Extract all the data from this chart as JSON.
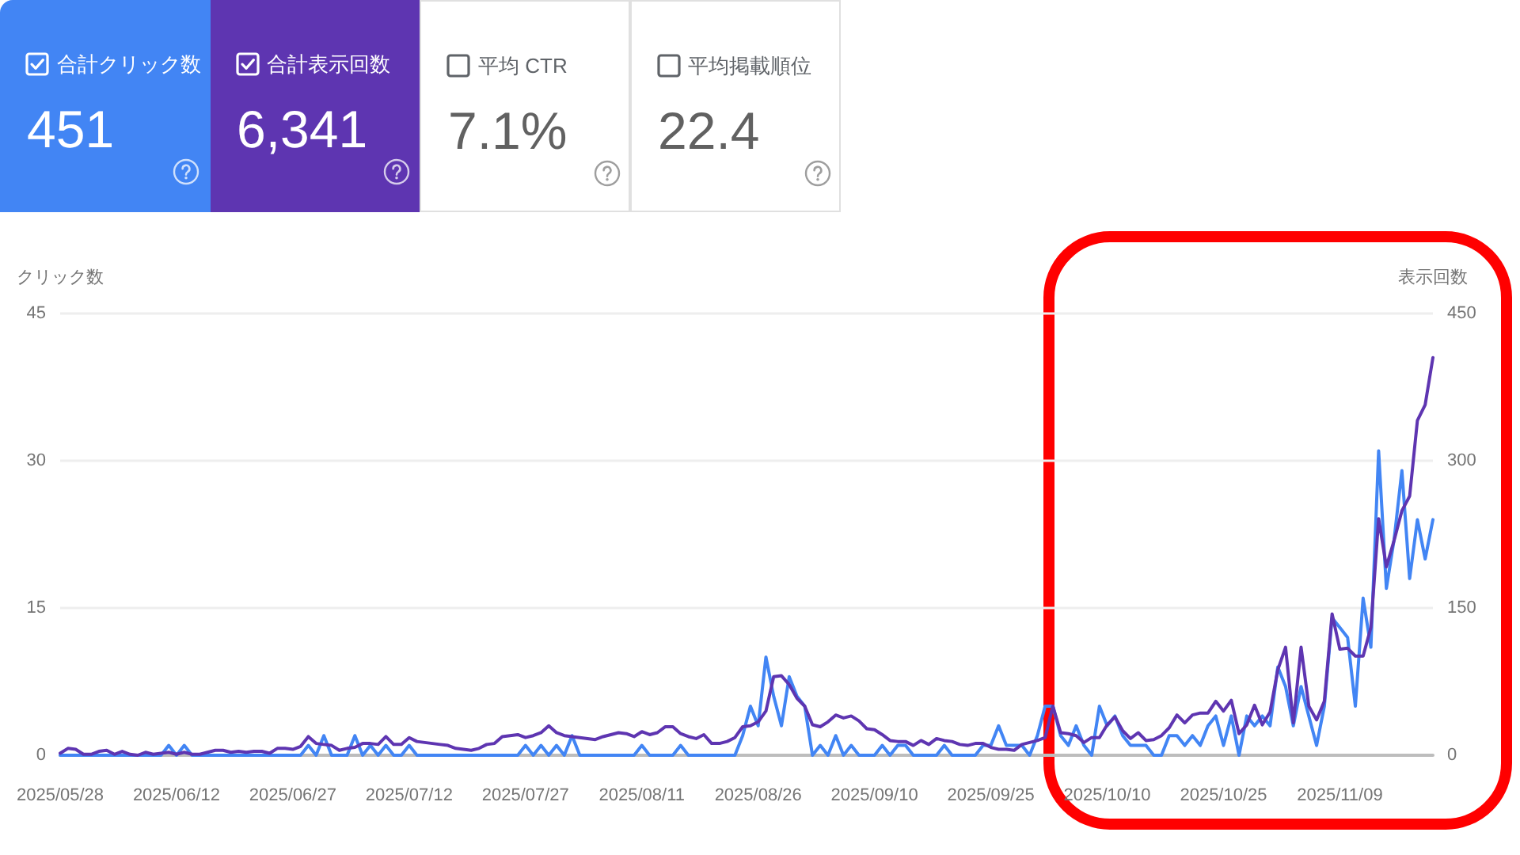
{
  "chart_data": [
    {
      "type": "other",
      "categories": [
        "合計クリック数",
        "合計表示回数",
        "平均 CTR",
        "平均掲載順位"
      ],
      "value_labels": [
        "451",
        "6,341",
        "7.1%",
        "22.4"
      ],
      "colors": [
        "#4285f4",
        "#5e35b1",
        "#ffffff",
        "#ffffff"
      ]
    },
    {
      "type": "line",
      "ylabel": "クリック数",
      "y2label": "表示回数",
      "x": [
        "2025-05-28",
        "2025-05-29",
        "2025-05-30",
        "2025-05-31",
        "2025-06-01",
        "2025-06-02",
        "2025-06-03",
        "2025-06-04",
        "2025-06-05",
        "2025-06-06",
        "2025-06-07",
        "2025-06-08",
        "2025-06-09",
        "2025-06-10",
        "2025-06-11",
        "2025-06-12",
        "2025-06-13",
        "2025-06-14",
        "2025-06-15",
        "2025-06-16",
        "2025-06-17",
        "2025-06-18",
        "2025-06-19",
        "2025-06-20",
        "2025-06-21",
        "2025-06-22",
        "2025-06-23",
        "2025-06-24",
        "2025-06-25",
        "2025-06-26",
        "2025-06-27",
        "2025-06-28",
        "2025-06-29",
        "2025-06-30",
        "2025-07-01",
        "2025-07-02",
        "2025-07-03",
        "2025-07-04",
        "2025-07-05",
        "2025-07-06",
        "2025-07-07",
        "2025-07-08",
        "2025-07-09",
        "2025-07-10",
        "2025-07-11",
        "2025-07-12",
        "2025-07-13",
        "2025-07-14",
        "2025-07-15",
        "2025-07-16",
        "2025-07-17",
        "2025-07-18",
        "2025-07-19",
        "2025-07-20",
        "2025-07-21",
        "2025-07-22",
        "2025-07-23",
        "2025-07-24",
        "2025-07-25",
        "2025-07-26",
        "2025-07-27",
        "2025-07-28",
        "2025-07-29",
        "2025-07-30",
        "2025-07-31",
        "2025-08-01",
        "2025-08-02",
        "2025-08-03",
        "2025-08-04",
        "2025-08-05",
        "2025-08-06",
        "2025-08-07",
        "2025-08-08",
        "2025-08-09",
        "2025-08-10",
        "2025-08-11",
        "2025-08-12",
        "2025-08-13",
        "2025-08-14",
        "2025-08-15",
        "2025-08-16",
        "2025-08-17",
        "2025-08-18",
        "2025-08-19",
        "2025-08-20",
        "2025-08-21",
        "2025-08-22",
        "2025-08-23",
        "2025-08-24",
        "2025-08-25",
        "2025-08-26",
        "2025-08-27",
        "2025-08-28",
        "2025-08-29",
        "2025-08-30",
        "2025-08-31",
        "2025-09-01",
        "2025-09-02",
        "2025-09-03",
        "2025-09-04",
        "2025-09-05",
        "2025-09-06",
        "2025-09-07",
        "2025-09-08",
        "2025-09-09",
        "2025-09-10",
        "2025-09-11",
        "2025-09-12",
        "2025-09-13",
        "2025-09-14",
        "2025-09-15",
        "2025-09-16",
        "2025-09-17",
        "2025-09-18",
        "2025-09-19",
        "2025-09-20",
        "2025-09-21",
        "2025-09-22",
        "2025-09-23",
        "2025-09-24",
        "2025-09-25",
        "2025-09-26",
        "2025-09-27",
        "2025-09-28",
        "2025-09-29",
        "2025-09-30",
        "2025-10-01",
        "2025-10-02",
        "2025-10-03",
        "2025-10-04",
        "2025-10-05",
        "2025-10-06",
        "2025-10-07",
        "2025-10-08",
        "2025-10-09",
        "2025-10-10",
        "2025-10-11",
        "2025-10-12",
        "2025-10-13",
        "2025-10-14",
        "2025-10-15",
        "2025-10-16",
        "2025-10-17",
        "2025-10-18",
        "2025-10-19",
        "2025-10-20",
        "2025-10-21",
        "2025-10-22",
        "2025-10-23",
        "2025-10-24",
        "2025-10-25",
        "2025-10-26",
        "2025-10-27",
        "2025-10-28",
        "2025-10-29",
        "2025-10-30",
        "2025-10-31",
        "2025-11-01",
        "2025-11-02",
        "2025-11-03",
        "2025-11-04",
        "2025-11-05",
        "2025-11-06",
        "2025-11-07",
        "2025-11-08",
        "2025-11-09",
        "2025-11-10",
        "2025-11-11",
        "2025-11-12",
        "2025-11-13",
        "2025-11-14",
        "2025-11-15",
        "2025-11-16",
        "2025-11-17",
        "2025-11-18",
        "2025-11-19",
        "2025-11-20",
        "2025-11-21"
      ],
      "series": [
        {
          "color": "#4285f4",
          "values": [
            0,
            0,
            0,
            0,
            0,
            0,
            0,
            0,
            0,
            0,
            0,
            0,
            0,
            0,
            1,
            0,
            1,
            0,
            0,
            0,
            0,
            0,
            0,
            0,
            0,
            0,
            0,
            0,
            0,
            0,
            0,
            0,
            1,
            0,
            2,
            0,
            0,
            0,
            2,
            0,
            1,
            0,
            1,
            0,
            0,
            1,
            0,
            0,
            0,
            0,
            0,
            0,
            0,
            0,
            0,
            0,
            0,
            0,
            0,
            0,
            1,
            0,
            1,
            0,
            1,
            0,
            2,
            0,
            0,
            0,
            0,
            0,
            0,
            0,
            0,
            1,
            0,
            0,
            0,
            0,
            1,
            0,
            0,
            0,
            0,
            0,
            0,
            0,
            2,
            5,
            3,
            10,
            6,
            3,
            8,
            6,
            5,
            0,
            1,
            0,
            2,
            0,
            1,
            0,
            0,
            0,
            1,
            0,
            1,
            1,
            0,
            0,
            0,
            0,
            1,
            0,
            0,
            0,
            0,
            1,
            1,
            3,
            1,
            1,
            1,
            0,
            2,
            5,
            5,
            2,
            1,
            3,
            1,
            0,
            5,
            3,
            4,
            2,
            1,
            1,
            1,
            0,
            0,
            2,
            2,
            1,
            2,
            1,
            3,
            4,
            1,
            4,
            0,
            4,
            3,
            4,
            3,
            9,
            7,
            3,
            7,
            4,
            1,
            5,
            14,
            13,
            12,
            5,
            16,
            11,
            31,
            17,
            22,
            29,
            18,
            24,
            20,
            24
          ]
        },
        {
          "color": "#5e35b1",
          "axis": "y2",
          "values": [
            2,
            7,
            6,
            1,
            1,
            4,
            5,
            1,
            4,
            1,
            0,
            3,
            1,
            2,
            3,
            1,
            3,
            1,
            1,
            3,
            5,
            5,
            3,
            4,
            3,
            4,
            4,
            2,
            7,
            7,
            6,
            9,
            19,
            12,
            11,
            10,
            5,
            7,
            8,
            12,
            12,
            11,
            19,
            11,
            11,
            18,
            14,
            13,
            12,
            11,
            10,
            7,
            6,
            5,
            7,
            11,
            12,
            19,
            20,
            21,
            18,
            20,
            23,
            30,
            23,
            20,
            19,
            18,
            17,
            16,
            19,
            21,
            23,
            22,
            19,
            24,
            21,
            23,
            29,
            29,
            22,
            19,
            17,
            21,
            12,
            12,
            14,
            18,
            29,
            30,
            34,
            45,
            80,
            81,
            72,
            58,
            50,
            31,
            29,
            34,
            41,
            38,
            40,
            35,
            27,
            26,
            21,
            15,
            14,
            14,
            10,
            15,
            11,
            17,
            15,
            14,
            11,
            10,
            12,
            12,
            8,
            6,
            6,
            5,
            11,
            13,
            15,
            18,
            50,
            23,
            22,
            20,
            13,
            18,
            18,
            31,
            39,
            25,
            17,
            23,
            15,
            16,
            20,
            28,
            41,
            33,
            41,
            43,
            43,
            55,
            45,
            56,
            22,
            31,
            51,
            31,
            44,
            87,
            110,
            33,
            110,
            50,
            36,
            55,
            144,
            108,
            109,
            101,
            101,
            130,
            241,
            192,
            219,
            249,
            264,
            341,
            357,
            405
          ]
        }
      ],
      "xlim": [
        "2025-05-28",
        "2025-11-21"
      ],
      "xticks": [
        {
          "value": "2025-05-28",
          "label": "2025/05/28"
        },
        {
          "value": "2025-06-12",
          "label": "2025/06/12"
        },
        {
          "value": "2025-06-27",
          "label": "2025/06/27"
        },
        {
          "value": "2025-07-12",
          "label": "2025/07/12"
        },
        {
          "value": "2025-07-27",
          "label": "2025/07/27"
        },
        {
          "value": "2025-08-11",
          "label": "2025/08/11"
        },
        {
          "value": "2025-08-26",
          "label": "2025/08/26"
        },
        {
          "value": "2025-09-10",
          "label": "2025/09/10"
        },
        {
          "value": "2025-09-25",
          "label": "2025/09/25"
        },
        {
          "value": "2025-10-10",
          "label": "2025/10/10"
        },
        {
          "value": "2025-10-25",
          "label": "2025/10/25"
        },
        {
          "value": "2025-11-09",
          "label": "2025/11/09"
        }
      ],
      "ylim": [
        0,
        45
      ],
      "yticks": [
        0,
        15,
        30,
        45
      ],
      "y2lim": [
        0,
        450
      ],
      "y2ticks": [
        0,
        150,
        300,
        450
      ],
      "grid": "y"
    }
  ]
}
